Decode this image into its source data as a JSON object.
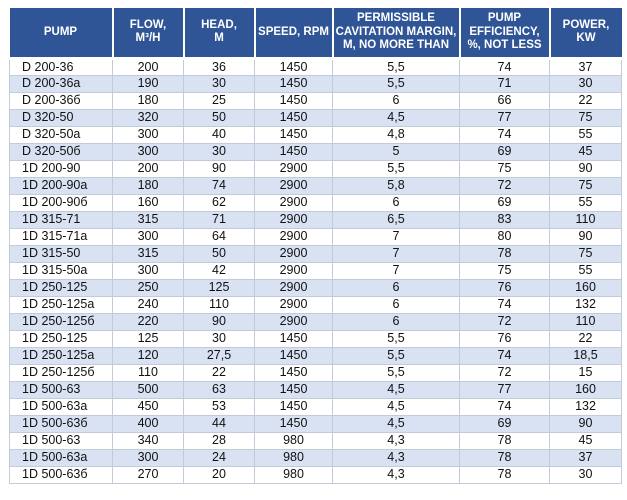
{
  "colors": {
    "header_bg": "#2F5597",
    "header_text": "#FFFFFF",
    "band_bg": "#D9E2F3",
    "grid": "#C3CBD9"
  },
  "table": {
    "columns": [
      {
        "id": "pump",
        "lines": [
          "PUMP"
        ]
      },
      {
        "id": "flow",
        "lines": [
          "FLOW,",
          "M³/H"
        ]
      },
      {
        "id": "head",
        "lines": [
          "HEAD,",
          "M"
        ]
      },
      {
        "id": "speed",
        "lines": [
          "SPEED, RPM"
        ]
      },
      {
        "id": "cavitation-margin",
        "lines": [
          "PERMISSIBLE",
          "CAVITATION MARGIN,",
          "M, NO MORE THAN"
        ]
      },
      {
        "id": "efficiency",
        "lines": [
          "PUMP",
          "EFFICIENCY,",
          "%, NOT LESS"
        ]
      },
      {
        "id": "power",
        "lines": [
          "POWER,",
          "KW"
        ]
      }
    ],
    "rows": [
      [
        "D 200-36",
        "200",
        "36",
        "1450",
        "5,5",
        "74",
        "37"
      ],
      [
        "D 200-36a",
        "190",
        "30",
        "1450",
        "5,5",
        "71",
        "30"
      ],
      [
        "D 200-36б",
        "180",
        "25",
        "1450",
        "6",
        "66",
        "22"
      ],
      [
        "D 320-50",
        "320",
        "50",
        "1450",
        "4,5",
        "77",
        "75"
      ],
      [
        "D 320-50a",
        "300",
        "40",
        "1450",
        "4,8",
        "74",
        "55"
      ],
      [
        "D 320-50б",
        "300",
        "30",
        "1450",
        "5",
        "69",
        "45"
      ],
      [
        "1D 200-90",
        "200",
        "90",
        "2900",
        "5,5",
        "75",
        "90"
      ],
      [
        "1D 200-90a",
        "180",
        "74",
        "2900",
        "5,8",
        "72",
        "75"
      ],
      [
        "1D 200-90б",
        "160",
        "62",
        "2900",
        "6",
        "69",
        "55"
      ],
      [
        "1D 315-71",
        "315",
        "71",
        "2900",
        "6,5",
        "83",
        "110"
      ],
      [
        "1D 315-71a",
        "300",
        "64",
        "2900",
        "7",
        "80",
        "90"
      ],
      [
        "1D 315-50",
        "315",
        "50",
        "2900",
        "7",
        "78",
        "75"
      ],
      [
        "1D 315-50a",
        "300",
        "42",
        "2900",
        "7",
        "75",
        "55"
      ],
      [
        "1D 250-125",
        "250",
        "125",
        "2900",
        "6",
        "76",
        "160"
      ],
      [
        "1D 250-125a",
        "240",
        "110",
        "2900",
        "6",
        "74",
        "132"
      ],
      [
        "1D 250-125б",
        "220",
        "90",
        "2900",
        "6",
        "72",
        "110"
      ],
      [
        "1D 250-125",
        "125",
        "30",
        "1450",
        "5,5",
        "76",
        "22"
      ],
      [
        "1D 250-125a",
        "120",
        "27,5",
        "1450",
        "5,5",
        "74",
        "18,5"
      ],
      [
        "1D 250-125б",
        "110",
        "22",
        "1450",
        "5,5",
        "72",
        "15"
      ],
      [
        "1D 500-63",
        "500",
        "63",
        "1450",
        "4,5",
        "77",
        "160"
      ],
      [
        "1D 500-63a",
        "450",
        "53",
        "1450",
        "4,5",
        "74",
        "132"
      ],
      [
        "1D 500-63б",
        "400",
        "44",
        "1450",
        "4,5",
        "69",
        "90"
      ],
      [
        "1D 500-63",
        "340",
        "28",
        "980",
        "4,3",
        "78",
        "45"
      ],
      [
        "1D 500-63a",
        "300",
        "24",
        "980",
        "4,3",
        "78",
        "37"
      ],
      [
        "1D 500-63б",
        "270",
        "20",
        "980",
        "4,3",
        "78",
        "30"
      ]
    ]
  }
}
